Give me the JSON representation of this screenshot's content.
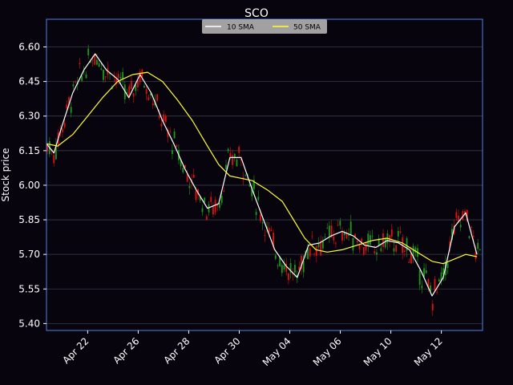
{
  "colors": {
    "background": "#07040d",
    "axes_border": "#4f7fe6",
    "grid": "#3a3a4a",
    "text": "#ffffff",
    "up": "#1c9a1c",
    "down": "#e01010",
    "sma10": "#ffffff",
    "sma50": "#ffff33",
    "legend_bg": "#bdbdbd"
  },
  "chart_data": {
    "type": "line",
    "title": "SCO",
    "ylabel": "Stock price",
    "xlabel": "",
    "ylim": [
      5.37,
      6.72
    ],
    "yticks": [
      5.4,
      5.55,
      5.7,
      5.85,
      6.0,
      6.15,
      6.3,
      6.45,
      6.6
    ],
    "ytick_labels": [
      "5.40",
      "5.55",
      "5.70",
      "5.85",
      "6.00",
      "6.15",
      "6.30",
      "6.45",
      "6.60"
    ],
    "xlim": [
      0,
      233
    ],
    "xticks": [
      22,
      49,
      76,
      103,
      130,
      157,
      184,
      211
    ],
    "xtick_labels": [
      "Apr 22",
      "Apr 26",
      "Apr 28",
      "Apr 30",
      "May 04",
      "May 06",
      "May 10",
      "May 12"
    ],
    "grid": true,
    "legend_position": "top-center",
    "series": [
      {
        "name": "10 SMA",
        "x": [
          0,
          4,
          8,
          14,
          20,
          26,
          32,
          38,
          44,
          50,
          56,
          62,
          68,
          74,
          80,
          86,
          92,
          98,
          104,
          110,
          116,
          122,
          128,
          134,
          140,
          146,
          152,
          158,
          164,
          170,
          176,
          182,
          188,
          194,
          200,
          206,
          212,
          218,
          224,
          230
        ],
        "values": [
          6.18,
          6.14,
          6.25,
          6.4,
          6.5,
          6.57,
          6.5,
          6.46,
          6.38,
          6.48,
          6.4,
          6.28,
          6.18,
          6.07,
          5.98,
          5.9,
          5.92,
          6.12,
          6.12,
          5.98,
          5.85,
          5.72,
          5.65,
          5.6,
          5.74,
          5.75,
          5.78,
          5.8,
          5.78,
          5.74,
          5.73,
          5.76,
          5.75,
          5.72,
          5.63,
          5.52,
          5.6,
          5.82,
          5.88,
          5.7
        ]
      },
      {
        "name": "50 SMA",
        "x": [
          0,
          6,
          14,
          22,
          30,
          38,
          46,
          54,
          62,
          70,
          78,
          86,
          92,
          98,
          104,
          110,
          118,
          126,
          132,
          138,
          144,
          150,
          158,
          166,
          174,
          182,
          190,
          198,
          206,
          212,
          218,
          224,
          230
        ],
        "values": [
          6.18,
          6.17,
          6.22,
          6.3,
          6.38,
          6.45,
          6.48,
          6.49,
          6.45,
          6.37,
          6.28,
          6.17,
          6.09,
          6.04,
          6.03,
          6.02,
          5.98,
          5.93,
          5.85,
          5.77,
          5.72,
          5.71,
          5.72,
          5.74,
          5.76,
          5.77,
          5.75,
          5.71,
          5.67,
          5.66,
          5.68,
          5.7,
          5.69
        ]
      }
    ]
  }
}
